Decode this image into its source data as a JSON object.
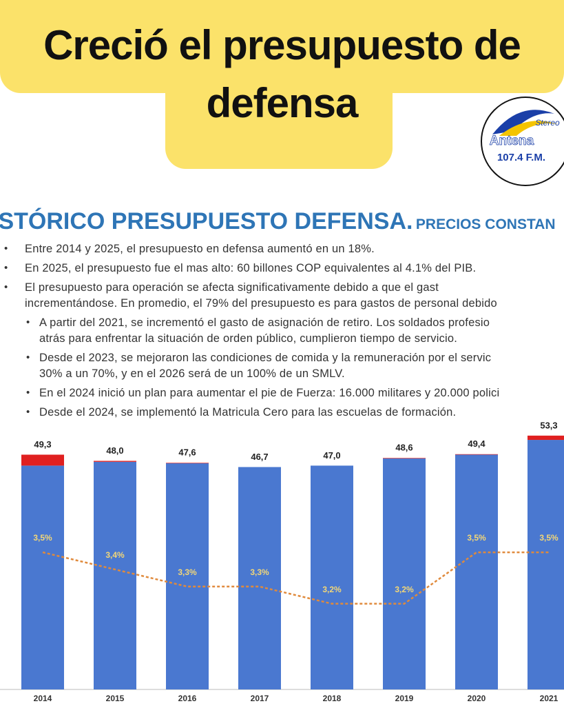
{
  "header": {
    "title": "Creció el presupuesto de defensa"
  },
  "logo": {
    "name": "Antena",
    "tag": "Stereo",
    "frequency": "107.4 F.M."
  },
  "slide": {
    "title": "ISTÓRICO PRESUPUESTO DEFENSA.",
    "subtitle": "PRECIOS CONSTAN",
    "bullets": [
      [
        "Entre 2014 y 2025, el presupuesto en defensa aumentó en un 18%."
      ],
      [
        "En 2025, el presupuesto fue el mas alto: 60 billones COP equivalentes al 4.1% del PIB."
      ],
      [
        "El presupuesto para operación se afecta significativamente debido a que el gast",
        "incrementándose. En promedio, el 79% del presupuesto es para gastos de personal debido"
      ]
    ],
    "sub_bullets": [
      [
        "A partir del 2021, se incrementó el gasto de asignación de retiro. Los soldados profesio",
        "atrás para enfrentar la situación de orden público, cumplieron tiempo de servicio."
      ],
      [
        "Desde el 2023, se mejoraron las condiciones de comida y la remuneración por el servic",
        "30% a un 70%, y en el 2026 será de un 100% de un SMLV."
      ],
      [
        "En el 2024 inició un plan para aumentar el pie de Fuerza: 16.000 militares y 20.000 polici"
      ],
      [
        "Desde el 2024, se implementó la Matricula Cero para las escuelas de formación."
      ]
    ]
  },
  "chart_data": {
    "type": "bar",
    "categories": [
      "2014",
      "2015",
      "2016",
      "2017",
      "2018",
      "2019",
      "2020",
      "2021"
    ],
    "series": [
      {
        "color": "#4a78d0",
        "values": [
          47.0,
          47.8,
          47.5,
          46.7,
          47.0,
          48.5,
          49.3,
          52.4
        ]
      },
      {
        "color": "#e02020",
        "values": [
          2.3,
          0.2,
          0.1,
          0,
          0,
          0.1,
          0.1,
          0.9
        ]
      }
    ],
    "totals": {
      "values": [
        49.3,
        48.0,
        47.6,
        46.7,
        47.0,
        48.6,
        49.4,
        53.3
      ],
      "value_labels": [
        "49,3",
        "48,0",
        "47,6",
        "46,7",
        "47,0",
        "48,6",
        "49,4",
        "53,3"
      ]
    },
    "line": {
      "color": "#e08a3c",
      "axis": "y2",
      "values": [
        3.5,
        3.4,
        3.3,
        3.3,
        3.2,
        3.2,
        3.5,
        3.5
      ],
      "value_labels": [
        "3,5%",
        "3,4%",
        "3,3%",
        "3,3%",
        "3,2%",
        "3,2%",
        "3,5%",
        "3,5%"
      ]
    },
    "ylim": [
      0,
      54
    ],
    "y2lim": [
      2.7,
      4.2
    ]
  }
}
